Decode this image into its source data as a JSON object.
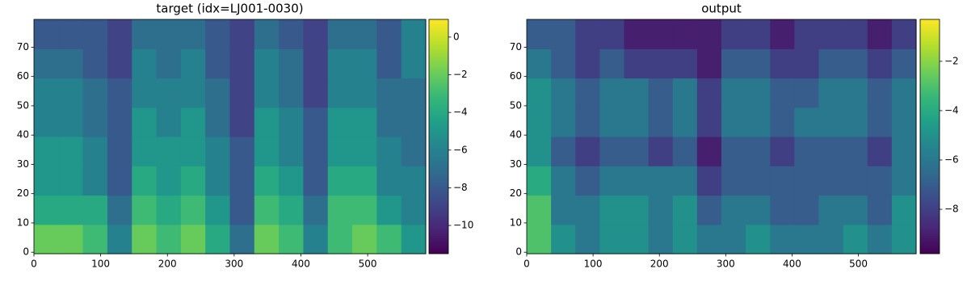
{
  "chart_data": [
    {
      "type": "heatmap",
      "title": "target (idx=LJ001-0030)",
      "xlim": [
        0,
        587
      ],
      "ylim": [
        -0.5,
        79.5
      ],
      "xticks": [
        0,
        100,
        200,
        300,
        400,
        500
      ],
      "yticks": [
        0,
        10,
        20,
        30,
        40,
        50,
        60,
        70
      ],
      "clim": [
        -11.5,
        0.94
      ],
      "cticks": [
        {
          "value": 0,
          "label": "0"
        },
        {
          "value": -2,
          "label": "−2"
        },
        {
          "value": -4,
          "label": "−4"
        },
        {
          "value": -6,
          "label": "−6"
        },
        {
          "value": -8,
          "label": "−8"
        },
        {
          "value": -10,
          "label": "−10"
        }
      ],
      "colormap": [
        "#440154",
        "#482878",
        "#3e4989",
        "#31688e",
        "#26828e",
        "#1f9e89",
        "#35b779",
        "#6ece58",
        "#b5de2b",
        "#fde725"
      ],
      "z": [
        [
          -2,
          -2,
          -3,
          -6,
          -2,
          -3,
          -2,
          -4,
          -7,
          -2,
          -3,
          -6,
          -3,
          -2,
          -3,
          -5
        ],
        [
          -4,
          -4,
          -4,
          -7,
          -3,
          -4,
          -3,
          -5,
          -8,
          -3,
          -4,
          -7,
          -3,
          -3,
          -5,
          -6
        ],
        [
          -5,
          -5,
          -6,
          -8,
          -4,
          -5,
          -4,
          -6,
          -8,
          -4,
          -5,
          -8,
          -4,
          -4,
          -6,
          -6
        ],
        [
          -5,
          -5,
          -6,
          -8,
          -5,
          -5,
          -5,
          -6,
          -8,
          -5,
          -6,
          -8,
          -5,
          -5,
          -6,
          -7
        ],
        [
          -6,
          -6,
          -7,
          -8,
          -5,
          -6,
          -5,
          -7,
          -9,
          -5,
          -6,
          -8,
          -5,
          -5,
          -7,
          -7
        ],
        [
          -6,
          -6,
          -7,
          -8,
          -6,
          -6,
          -6,
          -7,
          -9,
          -6,
          -7,
          -9,
          -6,
          -6,
          -7,
          -7
        ],
        [
          -7,
          -7,
          -8,
          -9,
          -6,
          -7,
          -6,
          -8,
          -9,
          -6,
          -7,
          -9,
          -6,
          -6,
          -8,
          -6
        ],
        [
          -8,
          -8,
          -8,
          -9,
          -7,
          -7,
          -7,
          -8,
          -9,
          -7,
          -8,
          -9,
          -7,
          -7,
          -8,
          -6
        ]
      ]
    },
    {
      "type": "heatmap",
      "title": "output",
      "xlim": [
        0,
        587
      ],
      "ylim": [
        -0.5,
        79.5
      ],
      "xticks": [
        0,
        100,
        200,
        300,
        400,
        500
      ],
      "yticks": [
        0,
        10,
        20,
        30,
        40,
        50,
        60,
        70
      ],
      "clim": [
        -9.8,
        -0.3
      ],
      "cticks": [
        {
          "value": -2,
          "label": "−2"
        },
        {
          "value": -4,
          "label": "−4"
        },
        {
          "value": -6,
          "label": "−6"
        },
        {
          "value": -8,
          "label": "−8"
        }
      ],
      "colormap": [
        "#440154",
        "#482878",
        "#3e4989",
        "#31688e",
        "#26828e",
        "#1f9e89",
        "#35b779",
        "#6ece58",
        "#b5de2b",
        "#fde725"
      ],
      "z": [
        [
          -3,
          -5,
          -6,
          -5,
          -5,
          -6,
          -5,
          -6,
          -6,
          -5,
          -6,
          -6,
          -6,
          -5,
          -6,
          -5
        ],
        [
          -3,
          -6,
          -6,
          -5,
          -5,
          -6,
          -5,
          -7,
          -6,
          -6,
          -7,
          -7,
          -6,
          -6,
          -7,
          -5
        ],
        [
          -4,
          -6,
          -7,
          -6,
          -6,
          -6,
          -6,
          -8,
          -7,
          -7,
          -7,
          -7,
          -7,
          -7,
          -7,
          -6
        ],
        [
          -5,
          -7,
          -8,
          -7,
          -7,
          -8,
          -7,
          -9,
          -7,
          -7,
          -8,
          -7,
          -7,
          -7,
          -8,
          -6
        ],
        [
          -5,
          -6,
          -7,
          -6,
          -6,
          -7,
          -6,
          -8,
          -6,
          -6,
          -7,
          -6,
          -6,
          -6,
          -7,
          -6
        ],
        [
          -5,
          -6,
          -7,
          -6,
          -6,
          -7,
          -6,
          -8,
          -6,
          -6,
          -7,
          -7,
          -6,
          -6,
          -7,
          -6
        ],
        [
          -6,
          -7,
          -8,
          -7,
          -8,
          -8,
          -8,
          -9,
          -7,
          -7,
          -8,
          -8,
          -7,
          -7,
          -8,
          -7
        ],
        [
          -7,
          -7,
          -8,
          -8,
          -9,
          -9,
          -9,
          -9,
          -8,
          -8,
          -9,
          -8,
          -8,
          -8,
          -9,
          -8
        ]
      ]
    }
  ]
}
